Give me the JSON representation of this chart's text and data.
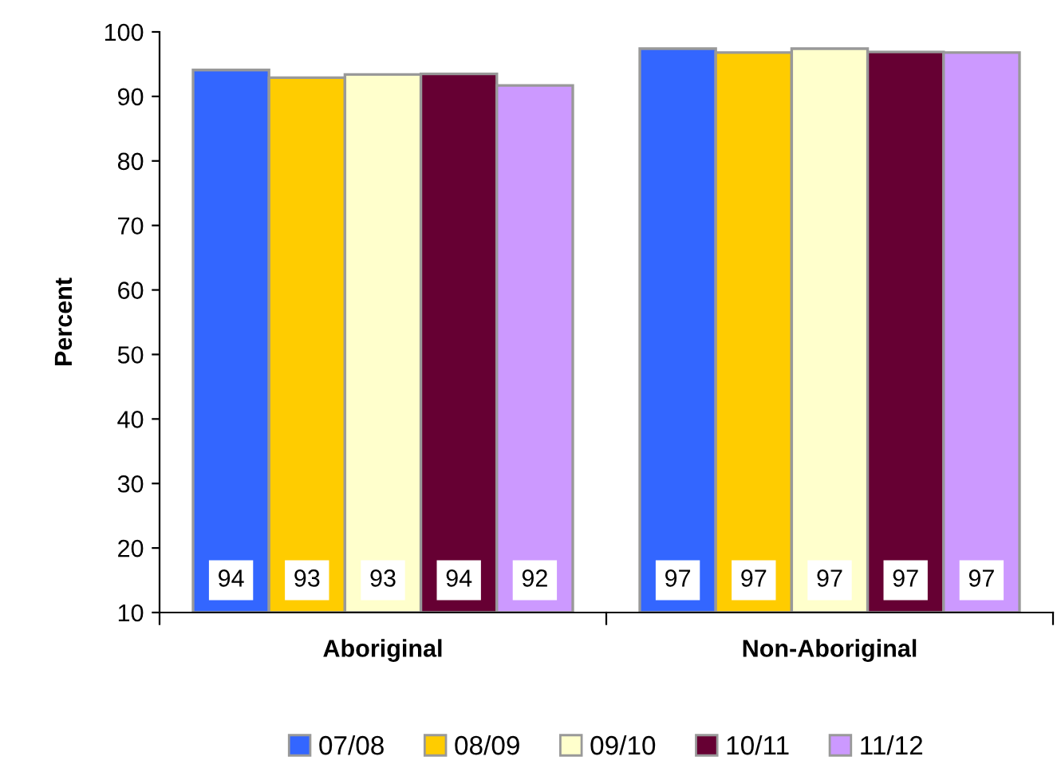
{
  "chart_data": {
    "type": "bar",
    "ylabel": "Percent",
    "categories": [
      "Aboriginal",
      "Non-Aboriginal"
    ],
    "series": [
      {
        "name": "07/08",
        "color": "#3366ff",
        "values": [
          94.1,
          97.4
        ],
        "value_labels": [
          "94",
          "97"
        ]
      },
      {
        "name": "08/09",
        "color": "#ffcc00",
        "values": [
          92.9,
          96.8
        ],
        "value_labels": [
          "93",
          "97"
        ]
      },
      {
        "name": "09/10",
        "color": "#ffffcc",
        "values": [
          93.4,
          97.4
        ],
        "value_labels": [
          "93",
          "97"
        ]
      },
      {
        "name": "10/11",
        "color": "#660033",
        "values": [
          93.5,
          96.9
        ],
        "value_labels": [
          "94",
          "97"
        ]
      },
      {
        "name": "11/12",
        "color": "#cc99ff",
        "values": [
          91.7,
          96.8
        ],
        "value_labels": [
          "92",
          "97"
        ]
      }
    ],
    "ylim": [
      10,
      100
    ],
    "yticks": [
      10,
      20,
      30,
      40,
      50,
      60,
      70,
      80,
      90,
      100
    ],
    "grid": false,
    "legend": "bottom"
  }
}
